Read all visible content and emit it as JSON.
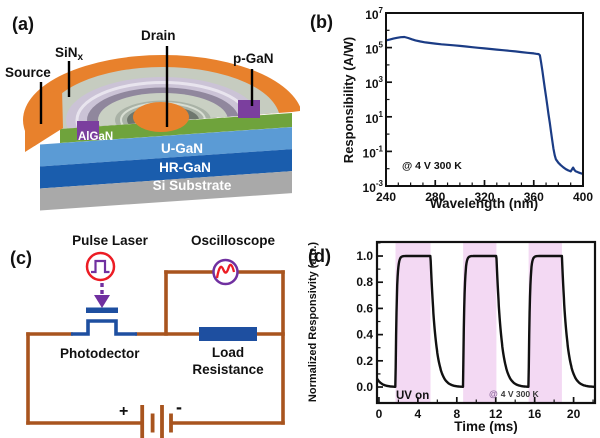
{
  "panel_a": {
    "tag": "(a)",
    "labels": {
      "source": "Source",
      "sinx_base": "SiN",
      "sinx_sub": "x",
      "drain": "Drain",
      "pgan": "p-GaN",
      "algan": "AlGaN",
      "ugan": "U-GaN",
      "hrgan": "HR-GaN",
      "substrate": "Si Substrate"
    },
    "colors": {
      "electrode_orange": "#E8812C",
      "sinx_gray": "#C6CCC0",
      "ring_top_lavender": "#CBC3D6",
      "ring_wall_shadow": "#90879D",
      "trench_gray": "#C9D0C3",
      "inner_ring_gray": "#A9B2A6",
      "inner_wall_dark": "#6E776E",
      "pgan_purple": "#7B3F9E",
      "algan_green": "#6FA33C",
      "ugan_blue": "#5B9BD5",
      "hrgan_blue": "#1A5DAD",
      "substrate_gray": "#A9A9A9"
    }
  },
  "panel_c": {
    "tag": "(c)",
    "labels": {
      "pulse_laser": "Pulse Laser",
      "oscilloscope": "Oscilloscope",
      "photodetector": "Photodector",
      "load_line1": "Load",
      "load_line2": "Resistance",
      "battery_plus": "+",
      "battery_minus": "-"
    },
    "colors": {
      "wire_brown": "#A8541E",
      "device_blue": "#1E4FA0",
      "accent_purple": "#7030A0",
      "accent_red": "#EC1C24"
    }
  },
  "chart_data": [
    {
      "panel": "b",
      "tag": "(b)",
      "type": "line",
      "xlabel": "Wavelength (nm)",
      "ylabel": "Responsibility (A/W)",
      "annotation": "@ 4 V  300 K",
      "x_ticks": [
        240,
        280,
        320,
        360,
        400
      ],
      "x_minor_step": 10,
      "xlim": [
        240,
        400
      ],
      "y_scale": "log",
      "ylim": [
        0.001,
        10000000
      ],
      "y_tick_exponents": [
        7,
        5,
        3,
        1,
        -1,
        -3
      ],
      "grid": false,
      "line_color": "#1B3C85",
      "series": [
        {
          "name": "responsivity",
          "x": [
            240,
            243,
            246,
            249,
            252,
            255,
            258,
            261,
            264,
            268,
            272,
            276,
            280,
            285,
            290,
            295,
            300,
            305,
            310,
            315,
            320,
            325,
            330,
            335,
            340,
            345,
            350,
            355,
            360,
            362,
            364,
            365,
            366,
            367,
            368,
            369,
            370,
            371,
            372,
            373,
            374,
            375,
            376,
            377,
            378,
            380,
            382,
            384,
            386,
            388,
            390,
            391,
            392,
            393,
            394,
            396,
            398,
            400
          ],
          "y": [
            260000.0,
            290000.0,
            330000.0,
            370000.0,
            400000.0,
            410000.0,
            360000.0,
            300000.0,
            260000.0,
            225000.0,
            200000.0,
            185000.0,
            170000.0,
            155000.0,
            145000.0,
            135000.0,
            125000.0,
            115000.0,
            105000.0,
            98000.0,
            90000.0,
            83000.0,
            77000.0,
            71000.0,
            65000.0,
            60000.0,
            55000.0,
            50000.0,
            46000.0,
            44000.0,
            42000.0,
            36000.0,
            14000.0,
            4500,
            1400,
            450,
            140,
            45,
            14,
            4.5,
            1.4,
            0.45,
            0.15,
            0.06,
            0.035,
            0.022,
            0.016,
            0.012,
            0.0095,
            0.008,
            0.007,
            0.009,
            0.0115,
            0.0085,
            0.0072,
            0.0062,
            0.0055,
            0.005
          ]
        }
      ]
    },
    {
      "panel": "d",
      "tag": "(d)",
      "type": "line",
      "xlabel": "Time (ms)",
      "ylabel": "Normalized Responsivity (a.u.)",
      "uv_label": "UV on",
      "annotation_at": "@",
      "annotation_text": "4 V  300 K",
      "x_ticks": [
        0,
        4,
        8,
        12,
        16,
        20
      ],
      "x_minor_step": 2,
      "xlim": [
        0,
        22.2
      ],
      "y_ticks": [
        0.0,
        0.2,
        0.4,
        0.6,
        0.8,
        1.0
      ],
      "y_minor_step": 0.1,
      "ylim": [
        -0.12,
        1.11
      ],
      "grid": false,
      "band_color": "#F3D9F3",
      "line_color": "#111111",
      "uv_on_intervals_ms": [
        [
          1.7,
          5.3
        ],
        [
          8.65,
          12.07
        ],
        [
          15.38,
          18.8
        ]
      ],
      "pulse_model": {
        "on_off_ms": [
          [
            -8.5,
            -1.63
          ],
          [
            1.7,
            5.3
          ],
          [
            8.65,
            12.07
          ],
          [
            15.38,
            18.8
          ]
        ],
        "rise_tau_ms": 0.12,
        "fall_tau_ms": 0.52,
        "amplitude": 1.0
      }
    }
  ]
}
